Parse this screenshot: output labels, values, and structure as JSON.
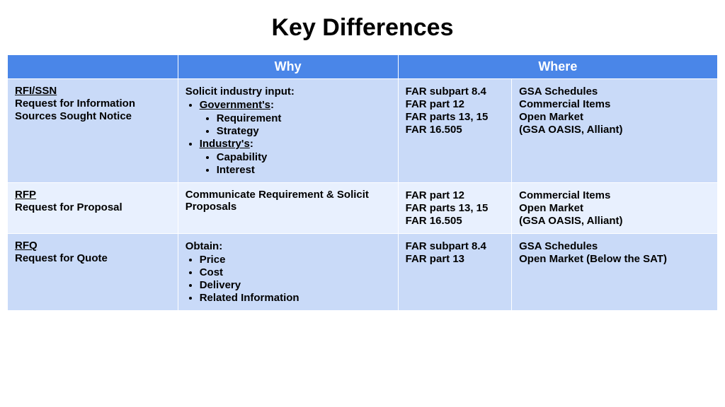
{
  "title": "Key Differences",
  "table": {
    "type": "table",
    "colors": {
      "header_bg": "#4a86e8",
      "header_text": "#ffffff",
      "row_light": "#c9daf8",
      "row_lighter": "#e8f0fe",
      "text": "#000000",
      "border": "#ffffff",
      "background": "#ffffff"
    },
    "fontsize": {
      "title": 34,
      "header": 18,
      "cell": 15
    },
    "headers": {
      "why": "Why",
      "where": "Where"
    },
    "col_widths_pct": [
      24,
      31,
      16,
      29
    ],
    "rows": {
      "rfi": {
        "name_title": "RFI/SSN",
        "name_line1": "Request for Information",
        "name_line2": "Sources Sought Notice",
        "why_intro": "Solicit industry input:",
        "why_b1": "Government's",
        "why_b1_s1": "Requirement",
        "why_b1_s2": "Strategy",
        "why_b2": "Industry's",
        "why_b2_s1": "Capability",
        "why_b2_s2": "Interest",
        "where_a1": "FAR subpart 8.4",
        "where_a2": "FAR part 12",
        "where_a3": "FAR parts 13, 15",
        "where_a4": "FAR 16.505",
        "where_b1": "GSA Schedules",
        "where_b2": "Commercial Items",
        "where_b3": "Open Market",
        "where_b4": "(GSA OASIS, Alliant)"
      },
      "rfp": {
        "name_title": "RFP",
        "name_line1": "Request for Proposal",
        "why": "Communicate Requirement & Solicit Proposals",
        "where_a1": "FAR part 12",
        "where_a2": "FAR parts 13, 15",
        "where_a3": "FAR 16.505",
        "where_b1": "Commercial Items",
        "where_b2": "Open Market",
        "where_b3": "(GSA OASIS, Alliant)"
      },
      "rfq": {
        "name_title": "RFQ",
        "name_line1": "Request for Quote",
        "why_intro": "Obtain:",
        "why_b1": "Price",
        "why_b2": "Cost",
        "why_b3": "Delivery",
        "why_b4": "Related Information",
        "where_a1": "FAR subpart 8.4",
        "where_a2": "FAR part 13",
        "where_b1": "GSA Schedules",
        "where_b2": "Open Market (Below the SAT)"
      }
    }
  }
}
